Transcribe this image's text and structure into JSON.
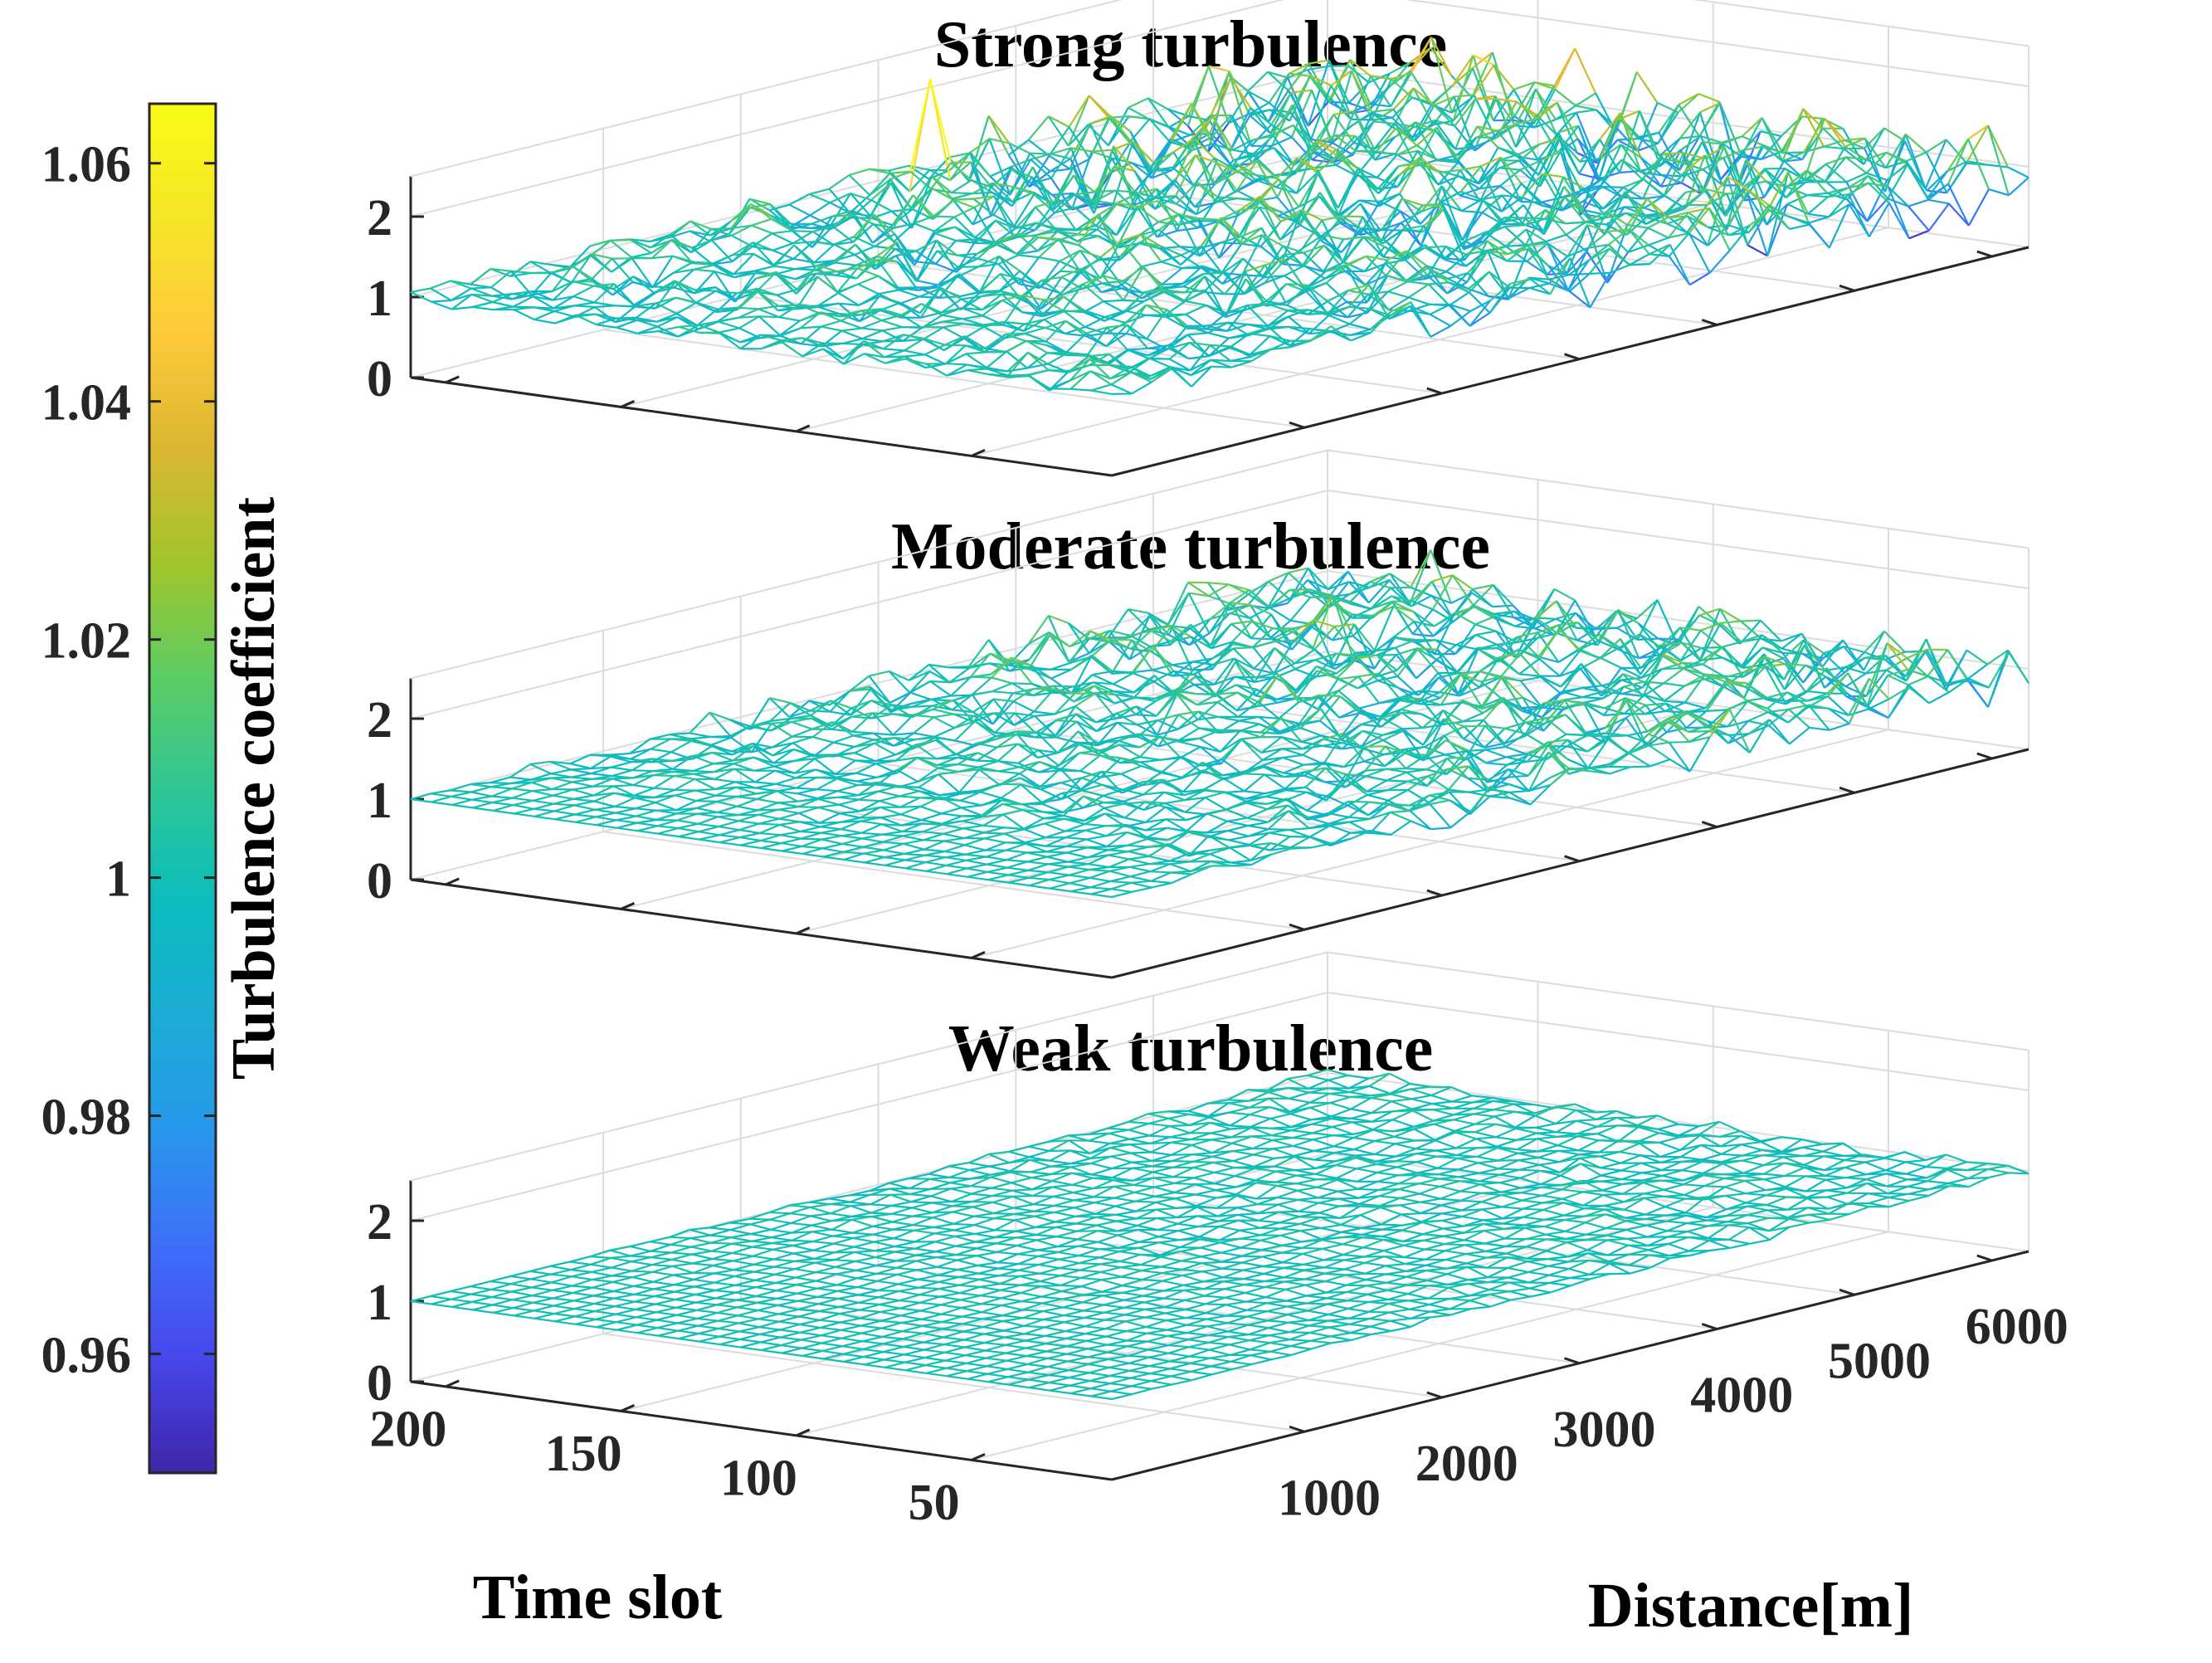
{
  "colors": {
    "colormap": [
      "#3e26a8",
      "#4746eb",
      "#3e6ff9",
      "#2797eb",
      "#1cacd6",
      "#0bbdbd",
      "#30c694",
      "#5ecc61",
      "#a2c52b",
      "#dcb731",
      "#feca3b",
      "#f5e627",
      "#f9fb15"
    ],
    "text": "#262626",
    "grid": "#dcdcdc"
  },
  "colorbar": {
    "label": "Turbulence coefficient",
    "range": [
      0.95,
      1.065
    ],
    "ticks": [
      {
        "value": 1.06,
        "label": "1.06"
      },
      {
        "value": 1.04,
        "label": "1.04"
      },
      {
        "value": 1.02,
        "label": "1.02"
      },
      {
        "value": 1.0,
        "label": "1"
      },
      {
        "value": 0.98,
        "label": "0.98"
      },
      {
        "value": 0.96,
        "label": "0.96"
      }
    ]
  },
  "axes": {
    "x_label": "Time slot",
    "y_label": "Distance[m]",
    "x_ticks": [
      "200",
      "150",
      "100",
      "50"
    ],
    "y_ticks": [
      "1000",
      "2000",
      "3000",
      "4000",
      "5000",
      "6000"
    ],
    "z_ticks": [
      "0",
      "1",
      "2"
    ]
  },
  "chart_data": [
    {
      "type": "surface-mesh",
      "title": "Strong turbulence",
      "xlabel": "Time slot",
      "ylabel": "Distance[m]",
      "zlabel": "",
      "x_range": [
        0,
        200
      ],
      "y_range": [
        0,
        6000
      ],
      "zlim": [
        0,
        2.5
      ],
      "z_ticks": [
        0,
        1,
        2
      ],
      "baseline": 1.0,
      "amplitude_at_start": 0.12,
      "amplitude_at_end": 0.55,
      "peak_value": 2.3,
      "color_range": [
        0.95,
        1.065
      ]
    },
    {
      "type": "surface-mesh",
      "title": "Moderate turbulence",
      "xlabel": "Time slot",
      "ylabel": "Distance[m]",
      "zlabel": "",
      "x_range": [
        0,
        200
      ],
      "y_range": [
        0,
        6000
      ],
      "zlim": [
        0,
        2.5
      ],
      "z_ticks": [
        0,
        1,
        2
      ],
      "baseline": 1.0,
      "amplitude_at_start": 0.0,
      "amplitude_at_end": 0.4,
      "peak_value": 2.1,
      "color_range": [
        0.95,
        1.065
      ]
    },
    {
      "type": "surface-mesh",
      "title": "Weak turbulence",
      "xlabel": "Time slot",
      "ylabel": "Distance[m]",
      "zlabel": "",
      "x_range": [
        0,
        200
      ],
      "y_range": [
        0,
        6000
      ],
      "zlim": [
        0,
        2.5
      ],
      "z_ticks": [
        0,
        1,
        2
      ],
      "baseline": 1.0,
      "amplitude_at_start": 0.0,
      "amplitude_at_end": 0.08,
      "peak_value": 1.1,
      "color_range": [
        0.95,
        1.065
      ]
    }
  ]
}
